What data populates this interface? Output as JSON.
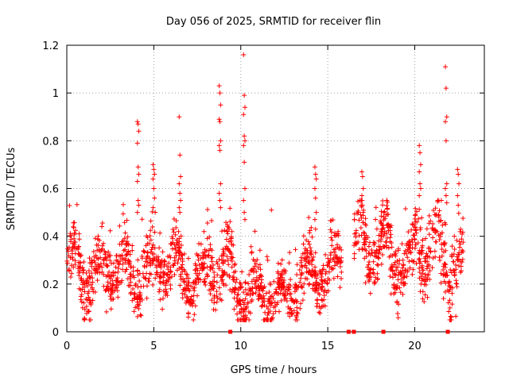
{
  "chart_data": {
    "type": "scatter",
    "title": "Day 056 of 2025, SRMTID for receiver flin",
    "xlabel": "GPS time / hours",
    "ylabel": "SRMTID / TECUs",
    "xlim": [
      0,
      24
    ],
    "ylim": [
      0,
      1.2
    ],
    "x_ticks": [
      0,
      5,
      10,
      15,
      20
    ],
    "x_tick_labels": [
      "0",
      "5",
      "10",
      "15",
      "20"
    ],
    "y_ticks": [
      0,
      0.2,
      0.4,
      0.6,
      0.8,
      1.0,
      1.2
    ],
    "y_tick_labels": [
      "0",
      "0.2",
      "0.4",
      "0.6",
      "0.8",
      "1",
      "1.2"
    ],
    "grid": true,
    "marker": "+",
    "color": "#ff0000",
    "gap_markers_x": [
      9.4,
      16.2,
      16.5,
      18.2,
      21.9
    ],
    "series": [
      {
        "name": "SRMTID",
        "segments": [
          {
            "start": 0.0,
            "end": 1.0,
            "base": 0.27,
            "amp": 0.09,
            "spread": 0.07
          },
          {
            "start": 1.0,
            "end": 2.0,
            "base": 0.22,
            "amp": 0.08,
            "spread": 0.08
          },
          {
            "start": 2.0,
            "end": 3.5,
            "base": 0.27,
            "amp": 0.08,
            "spread": 0.08
          },
          {
            "start": 3.5,
            "end": 5.0,
            "base": 0.24,
            "amp": 0.08,
            "spread": 0.08
          },
          {
            "start": 5.0,
            "end": 6.5,
            "base": 0.27,
            "amp": 0.08,
            "spread": 0.08
          },
          {
            "start": 6.5,
            "end": 8.0,
            "base": 0.22,
            "amp": 0.08,
            "spread": 0.07
          },
          {
            "start": 8.0,
            "end": 9.5,
            "base": 0.27,
            "amp": 0.09,
            "spread": 0.09
          },
          {
            "start": 9.5,
            "end": 11.0,
            "base": 0.17,
            "amp": 0.07,
            "spread": 0.07
          },
          {
            "start": 11.0,
            "end": 13.0,
            "base": 0.15,
            "amp": 0.06,
            "spread": 0.06
          },
          {
            "start": 13.0,
            "end": 14.0,
            "base": 0.22,
            "amp": 0.08,
            "spread": 0.07
          },
          {
            "start": 14.0,
            "end": 15.8,
            "base": 0.26,
            "amp": 0.09,
            "spread": 0.08
          },
          {
            "start": 16.5,
            "end": 18.5,
            "base": 0.36,
            "amp": 0.1,
            "spread": 0.09
          },
          {
            "start": 18.5,
            "end": 20.0,
            "base": 0.28,
            "amp": 0.08,
            "spread": 0.08
          },
          {
            "start": 20.0,
            "end": 21.5,
            "base": 0.36,
            "amp": 0.1,
            "spread": 0.1
          },
          {
            "start": 21.5,
            "end": 22.8,
            "base": 0.28,
            "amp": 0.09,
            "spread": 0.09
          }
        ],
        "spikes": [
          {
            "x": 4.1,
            "values": [
              0.88,
              0.87,
              0.84,
              0.79,
              0.69,
              0.66,
              0.63,
              0.55,
              0.53,
              0.5
            ]
          },
          {
            "x": 5.0,
            "values": [
              0.7,
              0.68,
              0.66,
              0.64,
              0.6,
              0.56,
              0.52
            ]
          },
          {
            "x": 6.5,
            "values": [
              0.9,
              0.74,
              0.65,
              0.62,
              0.58,
              0.55,
              0.52,
              0.5
            ]
          },
          {
            "x": 8.8,
            "values": [
              1.03,
              1.0,
              0.95,
              0.89,
              0.88,
              0.8,
              0.78,
              0.76,
              0.62,
              0.58,
              0.55,
              0.52
            ]
          },
          {
            "x": 10.2,
            "values": [
              1.16,
              0.99,
              0.94,
              0.91,
              0.82,
              0.8,
              0.78,
              0.71,
              0.6,
              0.55,
              0.5,
              0.47
            ]
          },
          {
            "x": 11.8,
            "values": [
              0.51
            ]
          },
          {
            "x": 14.3,
            "values": [
              0.69,
              0.66,
              0.64,
              0.6,
              0.56,
              0.5,
              0.47,
              0.43
            ]
          },
          {
            "x": 17.0,
            "values": [
              0.67,
              0.65,
              0.6,
              0.57,
              0.53,
              0.5
            ]
          },
          {
            "x": 20.3,
            "values": [
              0.78,
              0.75,
              0.7,
              0.67,
              0.62,
              0.6,
              0.57
            ]
          },
          {
            "x": 21.8,
            "values": [
              1.11,
              1.02,
              0.9,
              0.88,
              0.8,
              0.62,
              0.6,
              0.57,
              0.54
            ]
          },
          {
            "x": 22.5,
            "values": [
              0.68,
              0.66,
              0.62,
              0.57,
              0.53
            ]
          }
        ]
      }
    ]
  }
}
